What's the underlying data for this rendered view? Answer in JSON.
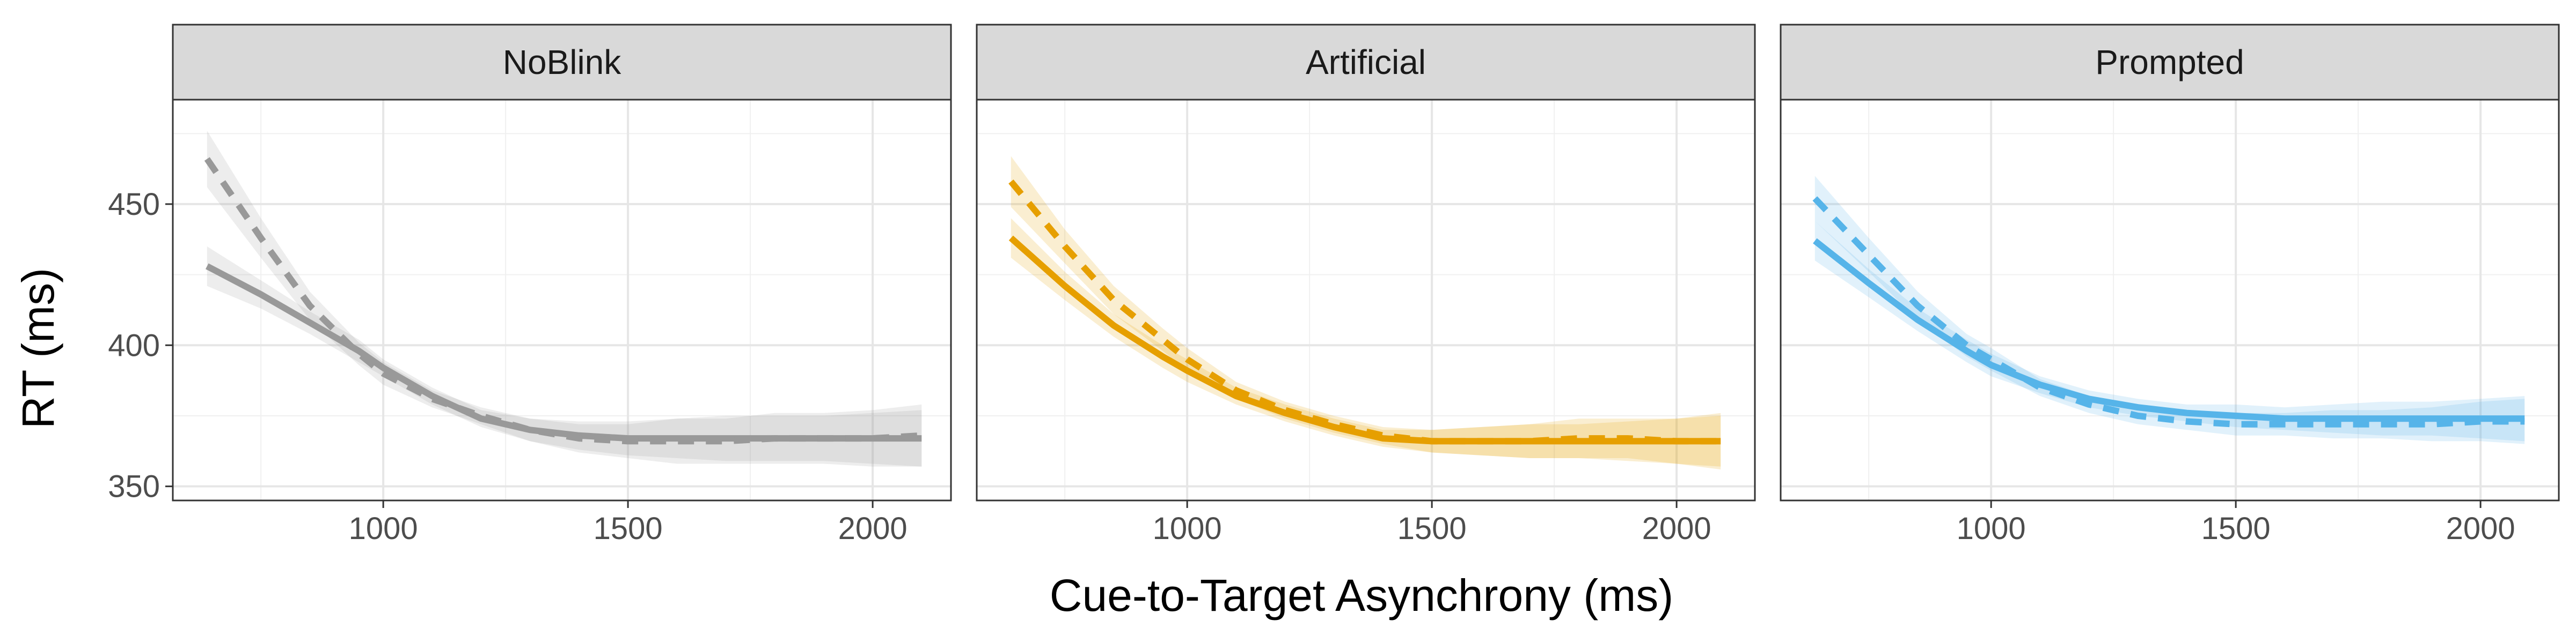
{
  "chart_data": {
    "type": "line",
    "xlabel": "Cue-to-Target Asynchrony (ms)",
    "ylabel": "RT (ms)",
    "xlim": [
      570,
      2160
    ],
    "ylim": [
      345,
      487
    ],
    "x_ticks": [
      1000,
      1500,
      2000
    ],
    "y_ticks": [
      350,
      400,
      450
    ],
    "grid": true,
    "facets": [
      {
        "name": "NoBlink",
        "color": "#999999",
        "series": [
          {
            "linestyle": "solid",
            "x": [
              640,
              750,
              850,
              950,
              1000,
              1100,
              1200,
              1300,
              1400,
              1500,
              1600,
              1700,
              1800,
              1900,
              2000,
              2100
            ],
            "y": [
              428,
              418,
              408,
              398,
              392,
              382,
              374,
              370,
              368,
              367,
              367,
              367,
              367,
              367,
              367,
              367
            ],
            "ci_low": [
              421,
              413,
              404,
              394,
              389,
              379,
              371,
              366,
              363,
              361,
              360,
              359,
              359,
              359,
              358,
              357
            ],
            "ci_high": [
              435,
              423,
              412,
              402,
              395,
              385,
              377,
              374,
              373,
              373,
              374,
              375,
              375,
              375,
              376,
              377
            ]
          },
          {
            "linestyle": "dashed",
            "x": [
              640,
              750,
              850,
              950,
              1000,
              1100,
              1200,
              1300,
              1400,
              1500,
              1600,
              1700,
              1800,
              1900,
              2000,
              2100
            ],
            "y": [
              466,
              438,
              414,
              397,
              390,
              381,
              375,
              370,
              367,
              366,
              366,
              366,
              367,
              367,
              367,
              368
            ],
            "ci_low": [
              456,
              431,
              409,
              393,
              386,
              378,
              372,
              366,
              362,
              360,
              358,
              358,
              358,
              358,
              357,
              357
            ],
            "ci_high": [
              476,
              445,
              419,
              401,
              394,
              384,
              378,
              374,
              372,
              372,
              374,
              374,
              376,
              376,
              377,
              379
            ]
          }
        ]
      },
      {
        "name": "Artificial",
        "color": "#E69F00",
        "series": [
          {
            "linestyle": "solid",
            "x": [
              640,
              750,
              850,
              950,
              1000,
              1100,
              1200,
              1300,
              1400,
              1500,
              1600,
              1700,
              1800,
              1900,
              2000,
              2090
            ],
            "y": [
              438,
              421,
              407,
              396,
              391,
              382,
              376,
              371,
              367,
              366,
              366,
              366,
              366,
              366,
              366,
              366
            ],
            "ci_low": [
              431,
              416,
              403,
              392,
              387,
              379,
              373,
              368,
              364,
              362,
              361,
              360,
              360,
              359,
              358,
              357
            ],
            "ci_high": [
              445,
              426,
              411,
              400,
              395,
              385,
              379,
              374,
              370,
              370,
              371,
              372,
              372,
              373,
              374,
              375
            ]
          },
          {
            "linestyle": "dashed",
            "x": [
              640,
              750,
              850,
              950,
              1000,
              1100,
              1200,
              1300,
              1400,
              1500,
              1600,
              1700,
              1800,
              1900,
              2000,
              2090
            ],
            "y": [
              458,
              435,
              416,
              402,
              395,
              384,
              377,
              372,
              368,
              366,
              366,
              366,
              367,
              367,
              366,
              366
            ],
            "ci_low": [
              449,
              429,
              411,
              398,
              391,
              381,
              374,
              369,
              365,
              362,
              361,
              360,
              360,
              360,
              358,
              356
            ],
            "ci_high": [
              467,
              441,
              421,
              406,
              399,
              387,
              380,
              375,
              371,
              370,
              371,
              372,
              374,
              374,
              374,
              376
            ]
          }
        ]
      },
      {
        "name": "Prompted",
        "color": "#56B4E9",
        "series": [
          {
            "linestyle": "solid",
            "x": [
              640,
              750,
              850,
              950,
              1000,
              1100,
              1200,
              1300,
              1400,
              1500,
              1600,
              1700,
              1800,
              1900,
              2000,
              2090
            ],
            "y": [
              437,
              422,
              409,
              398,
              393,
              386,
              381,
              378,
              376,
              375,
              374,
              374,
              374,
              374,
              374,
              374
            ],
            "ci_low": [
              430,
              417,
              405,
              394,
              389,
              383,
              378,
              375,
              373,
              371,
              370,
              369,
              368,
              368,
              367,
              366
            ],
            "ci_high": [
              444,
              427,
              413,
              402,
              397,
              389,
              384,
              381,
              379,
              379,
              378,
              379,
              380,
              380,
              381,
              382
            ]
          },
          {
            "linestyle": "dashed",
            "x": [
              640,
              750,
              850,
              950,
              1000,
              1100,
              1200,
              1300,
              1400,
              1500,
              1600,
              1700,
              1800,
              1900,
              2000,
              2090
            ],
            "y": [
              452,
              432,
              414,
              400,
              395,
              385,
              379,
              375,
              373,
              372,
              372,
              372,
              372,
              372,
              373,
              373
            ],
            "ci_low": [
              444,
              426,
              409,
              396,
              391,
              382,
              376,
              372,
              370,
              368,
              368,
              367,
              367,
              366,
              366,
              365
            ],
            "ci_high": [
              460,
              438,
              419,
              404,
              399,
              388,
              382,
              378,
              376,
              376,
              376,
              377,
              377,
              378,
              380,
              381
            ]
          }
        ]
      }
    ]
  }
}
